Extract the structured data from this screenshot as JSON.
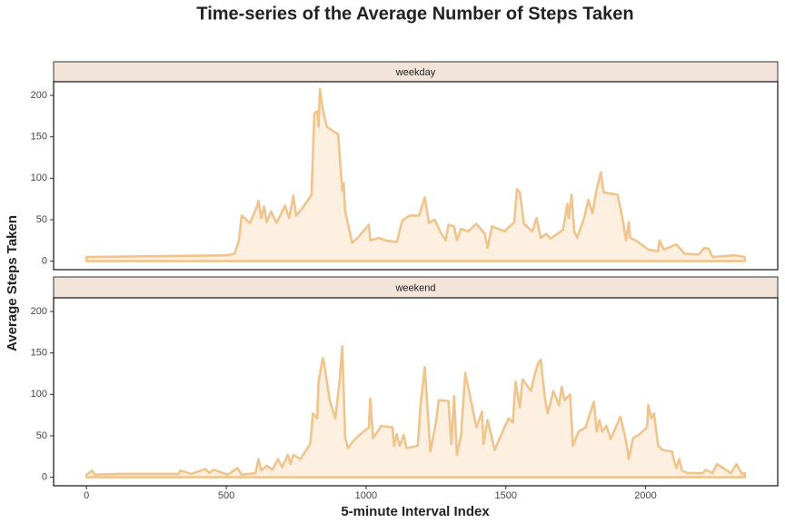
{
  "title": "Time-series of the Average Number of Steps Taken",
  "x_label": "5-minute Interval Index",
  "y_label": "Average Steps Taken",
  "xlim": [
    -117.75,
    2472.75
  ],
  "xticks": [
    0,
    500,
    1000,
    1500,
    2000
  ],
  "chart_data": [
    {
      "type": "area",
      "title": "weekday",
      "color": "#efc48d",
      "fill": "#fdf0e0",
      "ylim": [
        -10.3,
        216.5
      ],
      "yticks": [
        0,
        50,
        100,
        150,
        200
      ],
      "x": [
        0,
        505,
        530,
        545,
        555,
        585,
        610,
        615,
        625,
        635,
        645,
        660,
        680,
        710,
        725,
        740,
        750,
        770,
        805,
        815,
        825,
        830,
        835,
        845,
        860,
        900,
        915,
        920,
        925,
        950,
        970,
        1010,
        1015,
        1045,
        1070,
        1110,
        1130,
        1155,
        1190,
        1210,
        1225,
        1245,
        1265,
        1285,
        1295,
        1315,
        1325,
        1340,
        1365,
        1395,
        1425,
        1435,
        1450,
        1495,
        1530,
        1540,
        1550,
        1565,
        1595,
        1610,
        1625,
        1645,
        1660,
        1705,
        1720,
        1725,
        1735,
        1745,
        1755,
        1780,
        1795,
        1810,
        1825,
        1840,
        1850,
        1900,
        1920,
        1930,
        1940,
        1945,
        1965,
        2010,
        2045,
        2050,
        2065,
        2110,
        2140,
        2190,
        2210,
        2225,
        2240,
        2320,
        2355
      ],
      "values": [
        5,
        7,
        9,
        25,
        55,
        46,
        66,
        73,
        52,
        66,
        47,
        60,
        46,
        67,
        52,
        79,
        55,
        63,
        80,
        178,
        181,
        162,
        208,
        184,
        162,
        153,
        85,
        94,
        61,
        22,
        28,
        44,
        25,
        28,
        25,
        23,
        49,
        55,
        55,
        77,
        46,
        50,
        36,
        25,
        44,
        42,
        25,
        39,
        36,
        45,
        33,
        16,
        42,
        36,
        47,
        87,
        83,
        45,
        36,
        52,
        28,
        33,
        27,
        38,
        69,
        52,
        80,
        36,
        28,
        52,
        74,
        58,
        87,
        107,
        83,
        80,
        47,
        25,
        47,
        28,
        25,
        14,
        12,
        25,
        14,
        20,
        9,
        8,
        16,
        15,
        5,
        7,
        5
      ]
    },
    {
      "type": "area",
      "title": "weekend",
      "color": "#efc48d",
      "fill": "#fdf0e0",
      "ylim": [
        -10.3,
        216.5
      ],
      "yticks": [
        0,
        50,
        100,
        150,
        200
      ],
      "x": [
        0,
        20,
        30,
        115,
        330,
        335,
        375,
        425,
        440,
        455,
        505,
        540,
        555,
        605,
        615,
        625,
        645,
        665,
        685,
        700,
        720,
        730,
        740,
        765,
        800,
        810,
        825,
        830,
        845,
        850,
        870,
        890,
        905,
        915,
        925,
        935,
        955,
        990,
        1010,
        1015,
        1025,
        1055,
        1095,
        1100,
        1110,
        1120,
        1135,
        1145,
        1185,
        1195,
        1210,
        1220,
        1230,
        1250,
        1260,
        1295,
        1305,
        1315,
        1325,
        1340,
        1355,
        1375,
        1395,
        1415,
        1420,
        1435,
        1460,
        1495,
        1510,
        1525,
        1535,
        1550,
        1560,
        1590,
        1605,
        1615,
        1625,
        1640,
        1650,
        1670,
        1690,
        1700,
        1710,
        1730,
        1740,
        1760,
        1785,
        1815,
        1825,
        1835,
        1845,
        1860,
        1875,
        1910,
        1930,
        1940,
        1955,
        1975,
        2005,
        2010,
        2020,
        2030,
        2045,
        2060,
        2095,
        2100,
        2110,
        2120,
        2130,
        2150,
        2205,
        2215,
        2240,
        2255,
        2305,
        2325,
        2345,
        2355
      ],
      "values": [
        3,
        8,
        3,
        4,
        4,
        8,
        4,
        10,
        5,
        9,
        3,
        11,
        3,
        5,
        22,
        8,
        14,
        9,
        22,
        12,
        27,
        16,
        27,
        22,
        40,
        77,
        71,
        115,
        144,
        137,
        93,
        71,
        115,
        158,
        49,
        35,
        44,
        55,
        60,
        95,
        47,
        62,
        60,
        38,
        52,
        38,
        51,
        35,
        38,
        87,
        133,
        82,
        31,
        66,
        93,
        92,
        40,
        98,
        27,
        51,
        126,
        93,
        60,
        79,
        40,
        69,
        33,
        60,
        71,
        66,
        115,
        84,
        118,
        104,
        126,
        137,
        142,
        95,
        77,
        104,
        87,
        109,
        93,
        100,
        38,
        55,
        60,
        91,
        55,
        69,
        55,
        62,
        46,
        73,
        44,
        22,
        47,
        51,
        60,
        87,
        71,
        77,
        38,
        33,
        31,
        22,
        11,
        22,
        8,
        5,
        5,
        9,
        5,
        16,
        5,
        16,
        4,
        5
      ]
    }
  ]
}
